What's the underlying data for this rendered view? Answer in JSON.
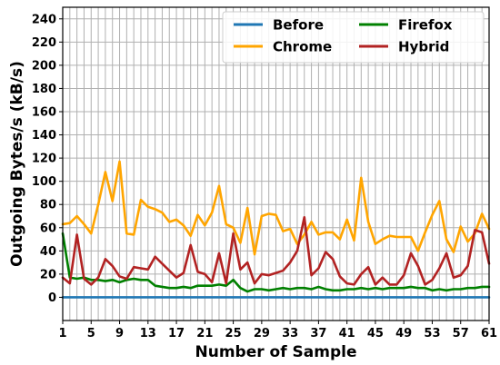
{
  "chart_data": {
    "type": "line",
    "xlabel": "Number of Sample",
    "ylabel": "Outgoing Bytes/s (kB/s)",
    "xlim": [
      1,
      61
    ],
    "ylim": [
      -20,
      250
    ],
    "x_ticks": [
      1,
      5,
      9,
      13,
      17,
      21,
      25,
      29,
      33,
      37,
      41,
      45,
      49,
      53,
      57,
      61
    ],
    "y_ticks": [
      0,
      20,
      40,
      60,
      80,
      100,
      120,
      140,
      160,
      180,
      200,
      220,
      240
    ],
    "grid": true,
    "legend_position": "top-right",
    "series": [
      {
        "name": "Before",
        "color": "#1f77b4",
        "values": [
          0,
          0,
          0,
          0,
          0,
          0,
          0,
          0,
          0,
          0,
          0,
          0,
          0,
          0,
          0,
          0,
          0,
          0,
          0,
          0,
          0,
          0,
          0,
          0,
          0,
          0,
          0,
          0,
          0,
          0,
          0,
          0,
          0,
          0,
          0,
          0,
          0,
          0,
          0,
          0,
          0,
          0,
          0,
          0,
          0,
          0,
          0,
          0,
          0,
          0,
          0,
          0,
          0,
          0,
          0,
          0,
          0,
          0,
          0,
          0,
          0
        ]
      },
      {
        "name": "Chrome",
        "color": "#ffa500",
        "values": [
          63,
          64,
          70,
          63,
          55,
          80,
          108,
          83,
          117,
          55,
          54,
          84,
          78,
          76,
          73,
          65,
          67,
          62,
          53,
          71,
          62,
          73,
          96,
          63,
          60,
          47,
          77,
          37,
          70,
          72,
          71,
          57,
          59,
          46,
          54,
          65,
          54,
          56,
          56,
          50,
          67,
          49,
          103,
          65,
          46,
          50,
          53,
          52,
          52,
          52,
          40,
          56,
          71,
          83,
          50,
          39,
          61,
          48,
          55,
          72,
          59
        ]
      },
      {
        "name": "Firefox",
        "color": "#008000",
        "values": [
          55,
          17,
          16,
          17,
          15,
          15,
          14,
          15,
          13,
          15,
          16,
          15,
          15,
          10,
          9,
          8,
          8,
          9,
          8,
          10,
          10,
          10,
          11,
          10,
          15,
          8,
          5,
          7,
          7,
          6,
          7,
          8,
          7,
          8,
          8,
          7,
          9,
          7,
          6,
          6,
          7,
          7,
          8,
          7,
          8,
          7,
          8,
          8,
          8,
          9,
          8,
          8,
          6,
          7,
          6,
          7,
          7,
          8,
          8,
          9,
          9
        ]
      },
      {
        "name": "Hybrid",
        "color": "#b22222",
        "values": [
          17,
          12,
          54,
          16,
          11,
          17,
          33,
          27,
          18,
          16,
          26,
          25,
          24,
          35,
          29,
          23,
          17,
          21,
          45,
          22,
          20,
          13,
          38,
          12,
          55,
          24,
          30,
          12,
          20,
          19,
          21,
          23,
          30,
          40,
          69,
          19,
          25,
          39,
          33,
          18,
          12,
          11,
          20,
          26,
          11,
          17,
          11,
          11,
          19,
          38,
          27,
          11,
          15,
          25,
          38,
          17,
          19,
          27,
          58,
          56,
          29
        ]
      }
    ]
  }
}
